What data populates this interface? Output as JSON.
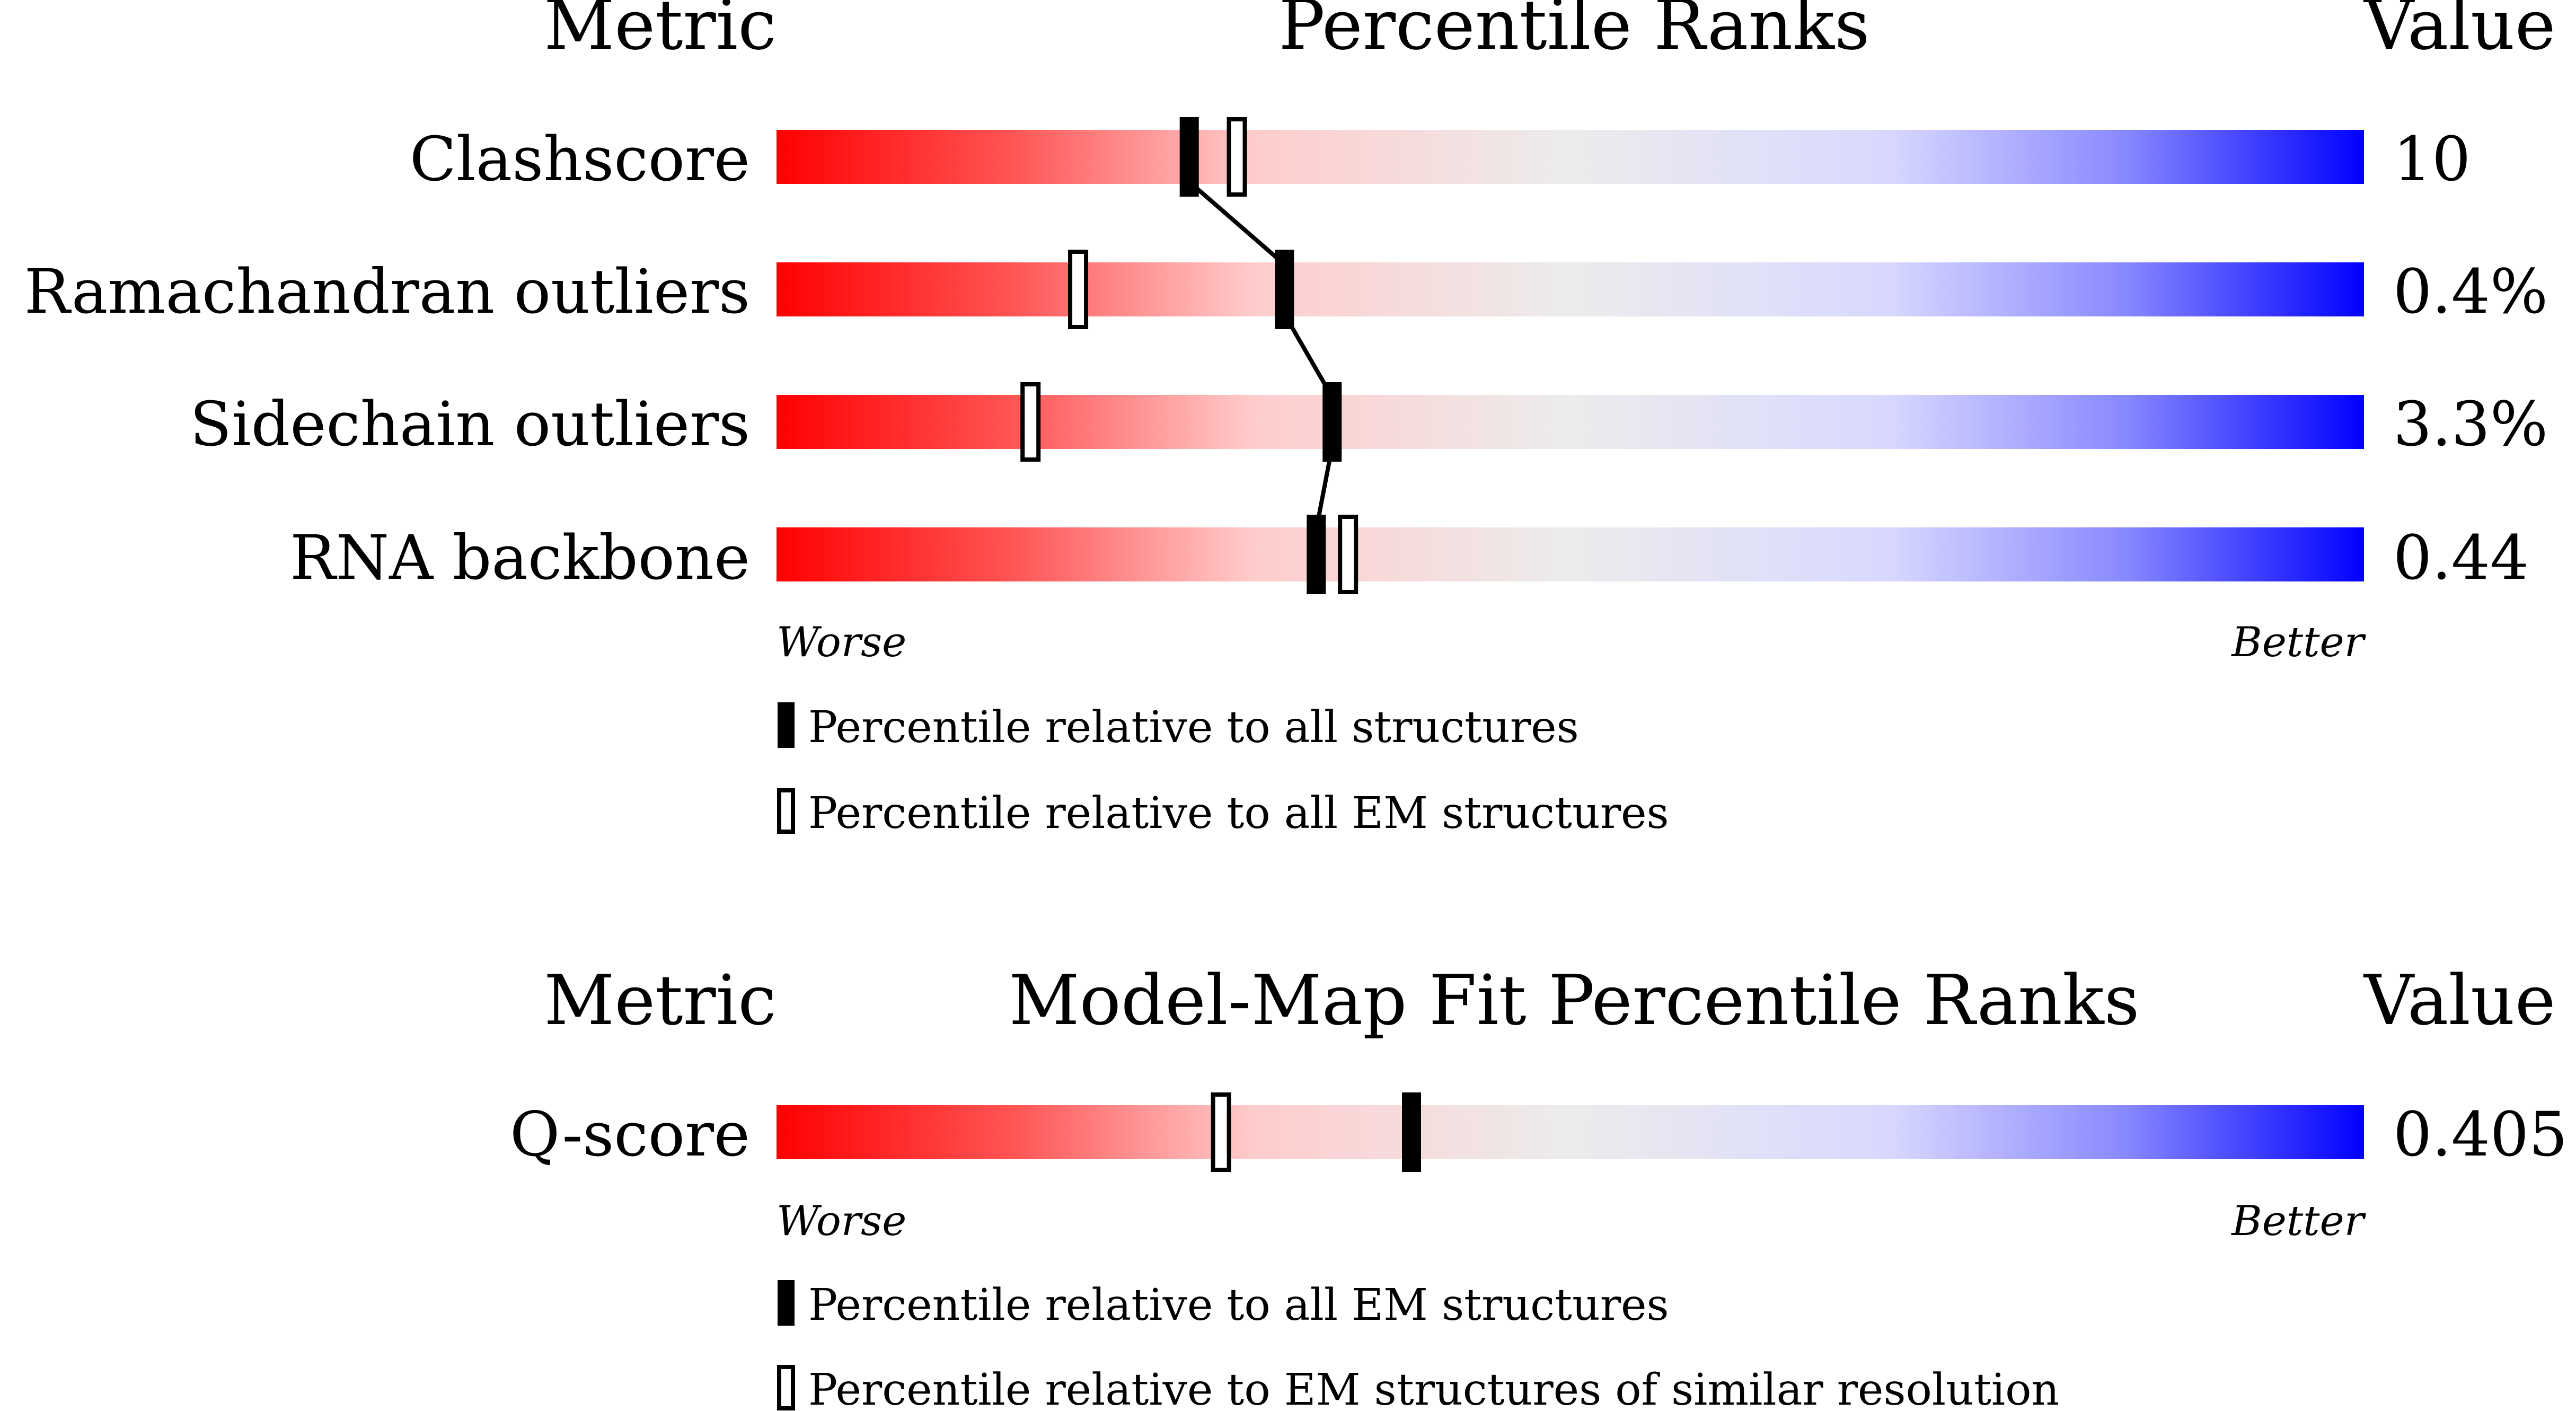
{
  "chart_data": [
    {
      "type": "percentile_slider",
      "header": {
        "metric": "Metric",
        "title": "Percentile Ranks",
        "value": "Value"
      },
      "scale": {
        "worse": "Worse",
        "better": "Better",
        "range": [
          0,
          100
        ]
      },
      "rows": [
        {
          "metric": "Clashscore",
          "value": "10",
          "percentile_all": 26,
          "percentile_em": 29
        },
        {
          "metric": "Ramachandran outliers",
          "value": "0.4%",
          "percentile_all": 32,
          "percentile_em": 19
        },
        {
          "metric": "Sidechain outliers",
          "value": "3.3%",
          "percentile_all": 35,
          "percentile_em": 16
        },
        {
          "metric": "RNA backbone",
          "value": "0.44",
          "percentile_all": 34,
          "percentile_em": 36
        }
      ],
      "legend": {
        "solid": "Percentile relative to all structures",
        "hollow": "Percentile relative to all EM structures"
      }
    },
    {
      "type": "percentile_slider",
      "header": {
        "metric": "Metric",
        "title": "Model-Map Fit Percentile Ranks",
        "value": "Value"
      },
      "scale": {
        "worse": "Worse",
        "better": "Better",
        "range": [
          0,
          100
        ]
      },
      "rows": [
        {
          "metric": "Q-score",
          "value": "0.405",
          "percentile_all": 40,
          "percentile_em": 28
        }
      ],
      "legend": {
        "solid": "Percentile relative to all EM structures",
        "hollow": "Percentile relative to EM structures of similar resolution"
      }
    }
  ]
}
